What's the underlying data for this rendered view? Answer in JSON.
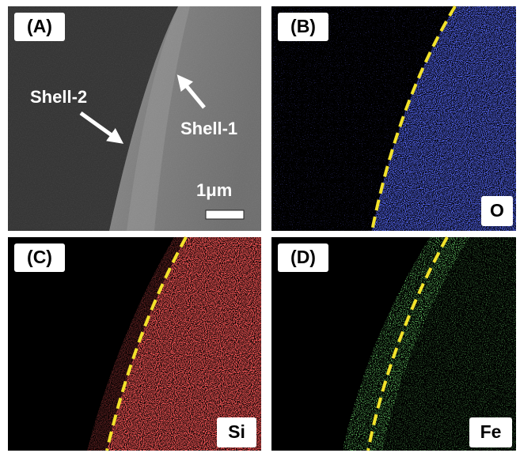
{
  "panels": [
    {
      "label": "(A)",
      "annotations": [
        "Shell-2",
        "Shell-1"
      ],
      "scale_bar": "1μm"
    },
    {
      "label": "(B)",
      "element": "O"
    },
    {
      "label": "(C)",
      "element": "Si"
    },
    {
      "label": "(D)",
      "element": "Fe"
    }
  ]
}
